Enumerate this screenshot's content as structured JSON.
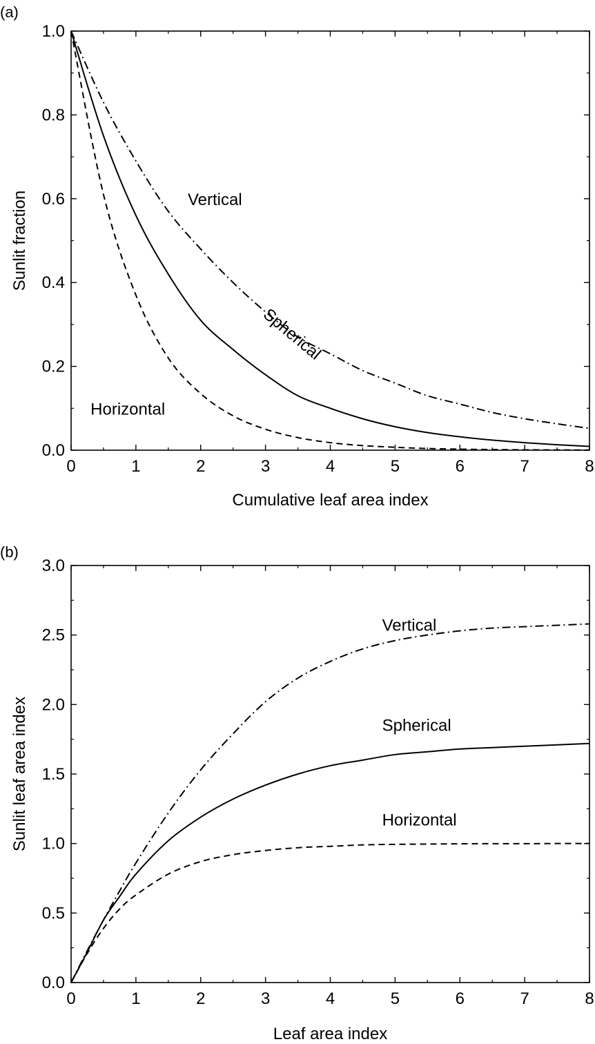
{
  "chart_data": [
    {
      "panel_label": "(a)",
      "type": "line",
      "xlabel": "Cumulative leaf area index",
      "ylabel": "Sunlit fraction",
      "xlim": [
        0,
        8
      ],
      "ylim": [
        0,
        1.0
      ],
      "xticks": [
        "0",
        "1",
        "2",
        "3",
        "4",
        "5",
        "6",
        "7",
        "8"
      ],
      "yticks": [
        "0.0",
        "0.2",
        "0.4",
        "0.6",
        "0.8",
        "1.0"
      ],
      "grid": false,
      "x": [
        0,
        0.5,
        1,
        1.5,
        2,
        2.5,
        3,
        3.5,
        4,
        4.5,
        5,
        5.5,
        6,
        6.5,
        7,
        7.5,
        8
      ],
      "series": [
        {
          "name": "Vertical",
          "style": "dashdot",
          "values": [
            1.0,
            0.83,
            0.69,
            0.57,
            0.48,
            0.4,
            0.33,
            0.27,
            0.23,
            0.19,
            0.16,
            0.13,
            0.11,
            0.09,
            0.075,
            0.063,
            0.052
          ]
        },
        {
          "name": "Spherical",
          "style": "solid",
          "values": [
            1.0,
            0.75,
            0.56,
            0.42,
            0.31,
            0.24,
            0.18,
            0.13,
            0.1,
            0.075,
            0.056,
            0.042,
            0.032,
            0.024,
            0.018,
            0.013,
            0.009
          ]
        },
        {
          "name": "Horizontal",
          "style": "dashed",
          "values": [
            1.0,
            0.61,
            0.37,
            0.22,
            0.135,
            0.082,
            0.05,
            0.03,
            0.018,
            0.011,
            0.007,
            0.004,
            0.0025,
            0.0015,
            0.0009,
            0.0006,
            0.0003
          ]
        }
      ],
      "annotations": [
        {
          "text": "Vertical",
          "x": 1.8,
          "y": 0.585
        },
        {
          "text": "Spherical",
          "x": 2.95,
          "y": 0.32,
          "rotate": 40
        },
        {
          "text": "Horizontal",
          "x": 0.3,
          "y": 0.085
        }
      ]
    },
    {
      "panel_label": "(b)",
      "type": "line",
      "xlabel": "Leaf area index",
      "ylabel": "Sunlit leaf area index",
      "xlim": [
        0,
        8
      ],
      "ylim": [
        0,
        3.0
      ],
      "xticks": [
        "0",
        "1",
        "2",
        "3",
        "4",
        "5",
        "6",
        "7",
        "8"
      ],
      "yticks": [
        "0.0",
        "0.5",
        "1.0",
        "1.5",
        "2.0",
        "2.5",
        "3.0"
      ],
      "grid": false,
      "x": [
        0,
        0.25,
        0.5,
        0.75,
        1,
        1.5,
        2,
        2.5,
        3,
        3.5,
        4,
        4.5,
        5,
        5.5,
        6,
        6.5,
        7,
        7.5,
        8
      ],
      "series": [
        {
          "name": "Vertical",
          "style": "dashdot",
          "values": [
            0,
            0.23,
            0.45,
            0.66,
            0.86,
            1.22,
            1.53,
            1.79,
            2.02,
            2.19,
            2.31,
            2.4,
            2.46,
            2.5,
            2.53,
            2.55,
            2.56,
            2.57,
            2.58
          ]
        },
        {
          "name": "Spherical",
          "style": "solid",
          "values": [
            0,
            0.22,
            0.45,
            0.62,
            0.78,
            1.02,
            1.19,
            1.32,
            1.42,
            1.5,
            1.56,
            1.6,
            1.64,
            1.66,
            1.68,
            1.69,
            1.7,
            1.71,
            1.72
          ]
        },
        {
          "name": "Horizontal",
          "style": "dashed",
          "values": [
            0,
            0.21,
            0.39,
            0.53,
            0.63,
            0.78,
            0.87,
            0.92,
            0.95,
            0.97,
            0.98,
            0.99,
            0.994,
            0.996,
            0.998,
            0.999,
            0.999,
            1.0,
            1.0
          ]
        }
      ],
      "annotations": [
        {
          "text": "Vertical",
          "x": 4.8,
          "y": 2.53
        },
        {
          "text": "Spherical",
          "x": 4.8,
          "y": 1.81
        },
        {
          "text": "Horizontal",
          "x": 4.8,
          "y": 1.13
        }
      ]
    }
  ]
}
